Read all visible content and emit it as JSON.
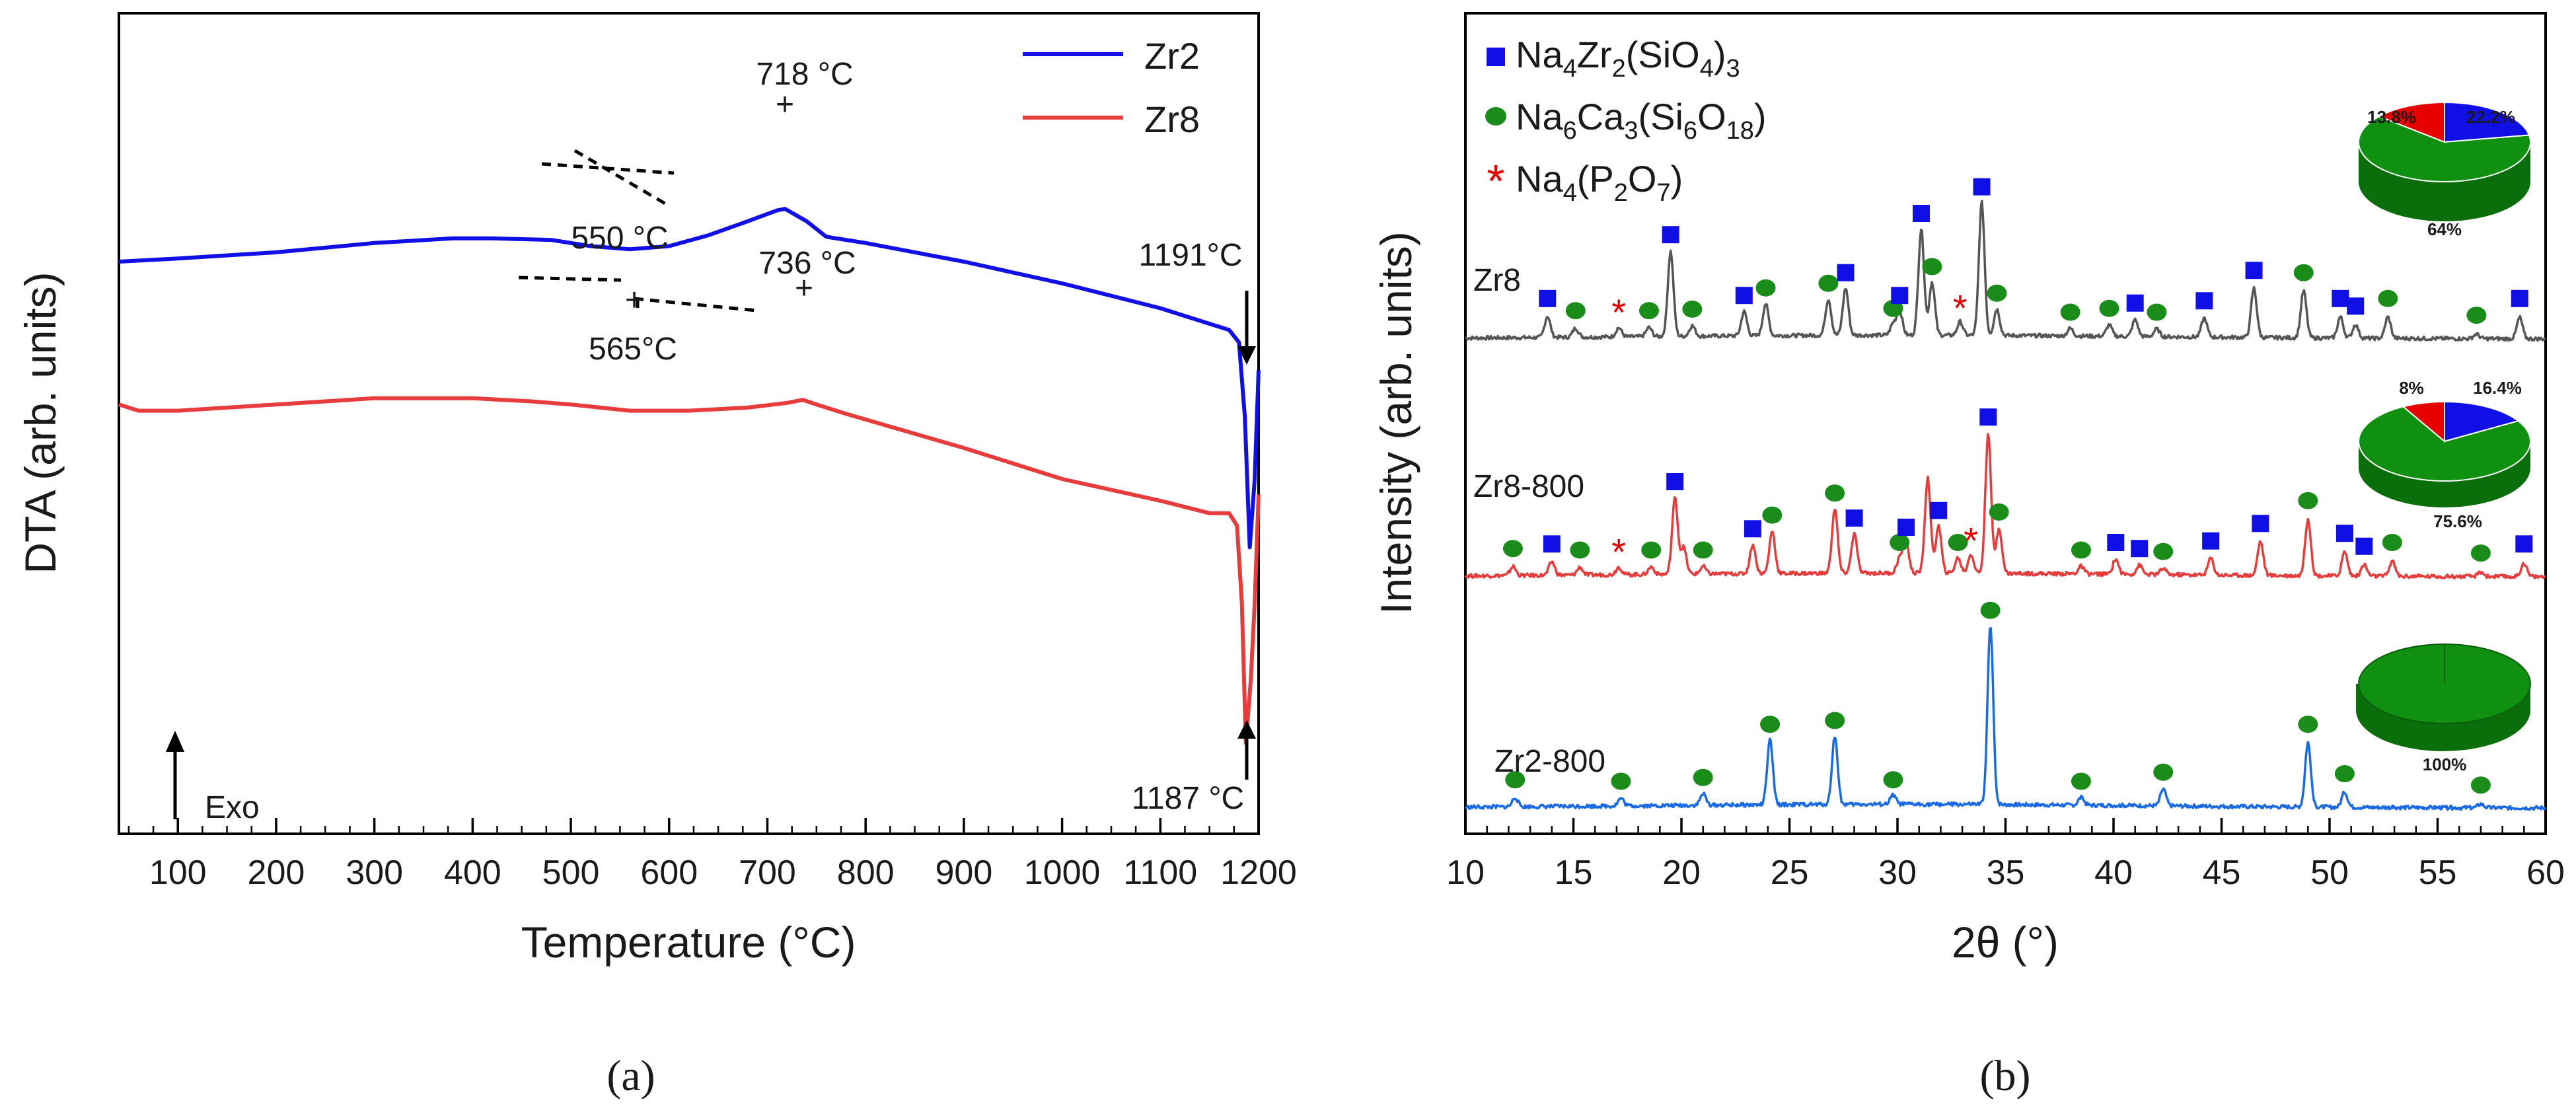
{
  "chart_data": [
    {
      "panel": "(a)",
      "type": "line",
      "xlabel": "Temperature (°C)",
      "ylabel": "DTA (arb. units)",
      "xlim": [
        40,
        1200
      ],
      "x_ticks": [
        "100",
        "200",
        "300",
        "400",
        "500",
        "600",
        "700",
        "800",
        "900",
        "1000",
        "1100",
        "1200"
      ],
      "legend": "top-right",
      "series": [
        {
          "name": "Zr2",
          "color": "#1010e6",
          "x": [
            40,
            100,
            200,
            300,
            380,
            420,
            480,
            520,
            560,
            600,
            640,
            680,
            710,
            718,
            740,
            760,
            800,
            900,
            1000,
            1100,
            1150,
            1170,
            1180,
            1186,
            1191,
            1196,
            1200
          ],
          "y": [
            0.8,
            0.79,
            0.77,
            0.74,
            0.725,
            0.725,
            0.73,
            0.75,
            0.76,
            0.75,
            0.715,
            0.67,
            0.635,
            0.63,
            0.67,
            0.72,
            0.74,
            0.8,
            0.87,
            0.95,
            1.0,
            1.02,
            1.06,
            1.3,
            1.72,
            1.5,
            1.15
          ]
        },
        {
          "name": "Zr8",
          "color": "#e63c3c",
          "x": [
            40,
            60,
            100,
            200,
            300,
            400,
            460,
            500,
            560,
            620,
            680,
            720,
            736,
            750,
            780,
            900,
            1000,
            1100,
            1150,
            1170,
            1178,
            1183,
            1187,
            1192,
            1196,
            1200
          ],
          "y": [
            1.26,
            1.28,
            1.28,
            1.26,
            1.24,
            1.24,
            1.25,
            1.26,
            1.28,
            1.28,
            1.27,
            1.255,
            1.245,
            1.26,
            1.29,
            1.4,
            1.5,
            1.57,
            1.61,
            1.61,
            1.65,
            1.9,
            2.35,
            2.15,
            1.9,
            1.55
          ]
        }
      ],
      "annotations": [
        "718 °C",
        "550 °C",
        "736 °C",
        "565°C",
        "1191°C",
        "1187 °C"
      ],
      "exo_label": "Exo"
    },
    {
      "panel": "(b)",
      "type": "line",
      "xlabel": "2θ (°)",
      "ylabel": "Intensity (arb. units)",
      "xlim": [
        10,
        60
      ],
      "x_ticks": [
        "10",
        "15",
        "20",
        "25",
        "30",
        "35",
        "40",
        "45",
        "50",
        "55",
        "60"
      ],
      "legend": "top-left",
      "legend_entries": [
        {
          "base": "Na",
          "s1": "4",
          "mid": "Zr",
          "s2": "2",
          "tail": "(SiO",
          "s3": "4",
          "end": ")",
          "s4": "3",
          "color": "#1010e6",
          "marker": "square"
        },
        {
          "base": "Na",
          "s1": "6",
          "mid": "Ca",
          "s2": "3",
          "tail": "(Si",
          "s3": "6",
          "end": "O",
          "s4": "18",
          "close": ")",
          "color": "#1a8c1a",
          "marker": "circle"
        },
        {
          "base": "Na",
          "s1": "4",
          "mid": "(P",
          "s2": "2",
          "tail": "O",
          "s3": "7",
          "end": ")",
          "color": "#e60000",
          "marker": "star"
        }
      ],
      "samples": [
        {
          "name": "Zr8",
          "color": "#555555",
          "peaks": [
            [
              13.8,
              0.28
            ],
            [
              15.1,
              0.12
            ],
            [
              17.1,
              0.12
            ],
            [
              18.5,
              0.12
            ],
            [
              19.5,
              1.12
            ],
            [
              20.5,
              0.14
            ],
            [
              22.9,
              0.32
            ],
            [
              23.9,
              0.42
            ],
            [
              26.8,
              0.48
            ],
            [
              27.6,
              0.62
            ],
            [
              29.8,
              0.15
            ],
            [
              30.1,
              0.32
            ],
            [
              31.1,
              1.4
            ],
            [
              31.6,
              0.7
            ],
            [
              32.9,
              0.18
            ],
            [
              33.9,
              1.75
            ],
            [
              34.6,
              0.35
            ],
            [
              38.0,
              0.1
            ],
            [
              39.8,
              0.15
            ],
            [
              41.0,
              0.22
            ],
            [
              42.0,
              0.1
            ],
            [
              44.2,
              0.25
            ],
            [
              46.5,
              0.65
            ],
            [
              48.8,
              0.62
            ],
            [
              50.5,
              0.28
            ],
            [
              51.2,
              0.18
            ],
            [
              52.7,
              0.28
            ],
            [
              56.8,
              0.06
            ],
            [
              58.8,
              0.28
            ]
          ],
          "pie": [
            {
              "label": "22.2%",
              "value": 22.2,
              "color": "#1010e6"
            },
            {
              "label": "64%",
              "value": 64.0,
              "color": "#109010"
            },
            {
              "label": "13.8%",
              "value": 13.8,
              "color": "#e60000"
            }
          ]
        },
        {
          "name": "Zr8-800",
          "color": "#e63c3c",
          "peaks": [
            [
              12.2,
              0.12
            ],
            [
              14.0,
              0.18
            ],
            [
              15.3,
              0.1
            ],
            [
              17.1,
              0.1
            ],
            [
              18.6,
              0.1
            ],
            [
              19.7,
              1.0
            ],
            [
              20.1,
              0.35
            ],
            [
              21.0,
              0.1
            ],
            [
              23.3,
              0.38
            ],
            [
              24.2,
              0.56
            ],
            [
              27.1,
              0.85
            ],
            [
              28.0,
              0.52
            ],
            [
              30.1,
              0.2
            ],
            [
              30.4,
              0.4
            ],
            [
              31.4,
              1.25
            ],
            [
              31.9,
              0.62
            ],
            [
              32.8,
              0.2
            ],
            [
              33.4,
              0.25
            ],
            [
              34.2,
              1.85
            ],
            [
              34.7,
              0.6
            ],
            [
              38.5,
              0.1
            ],
            [
              40.1,
              0.2
            ],
            [
              41.2,
              0.12
            ],
            [
              42.3,
              0.08
            ],
            [
              44.5,
              0.22
            ],
            [
              46.8,
              0.45
            ],
            [
              49.0,
              0.75
            ],
            [
              50.7,
              0.32
            ],
            [
              51.6,
              0.15
            ],
            [
              52.9,
              0.2
            ],
            [
              57.0,
              0.06
            ],
            [
              59.0,
              0.18
            ]
          ],
          "pie": [
            {
              "label": "16.4%",
              "value": 16.4,
              "color": "#1010e6"
            },
            {
              "label": "75.6%",
              "value": 75.6,
              "color": "#109010"
            },
            {
              "label": "8%",
              "value": 8.0,
              "color": "#e60000"
            }
          ]
        },
        {
          "name": "Zr2-800",
          "color": "#1a6ae6",
          "peaks": [
            [
              12.3,
              0.12
            ],
            [
              17.2,
              0.1
            ],
            [
              21.0,
              0.15
            ],
            [
              24.1,
              0.85
            ],
            [
              27.1,
              0.9
            ],
            [
              29.8,
              0.12
            ],
            [
              34.3,
              2.35
            ],
            [
              38.5,
              0.1
            ],
            [
              42.3,
              0.22
            ],
            [
              49.0,
              0.85
            ],
            [
              50.7,
              0.2
            ],
            [
              57.0,
              0.05
            ]
          ],
          "pie": [
            {
              "label": "100%",
              "value": 100,
              "color": "#109010"
            }
          ]
        }
      ]
    }
  ],
  "captions": {
    "a": "(a)",
    "b": "(b)"
  },
  "pie_labels": {
    "zr8": {
      "blue": "22.2%",
      "green": "64%",
      "red": "13.8%"
    },
    "zr8_800": {
      "blue": "16.4%",
      "green": "75.6%",
      "red": "8%"
    },
    "zr2_800": {
      "green": "100%"
    }
  },
  "colors": {
    "blue_marker": "#1010e6",
    "green_marker": "#1a8c1a",
    "red_marker": "#e60000"
  }
}
